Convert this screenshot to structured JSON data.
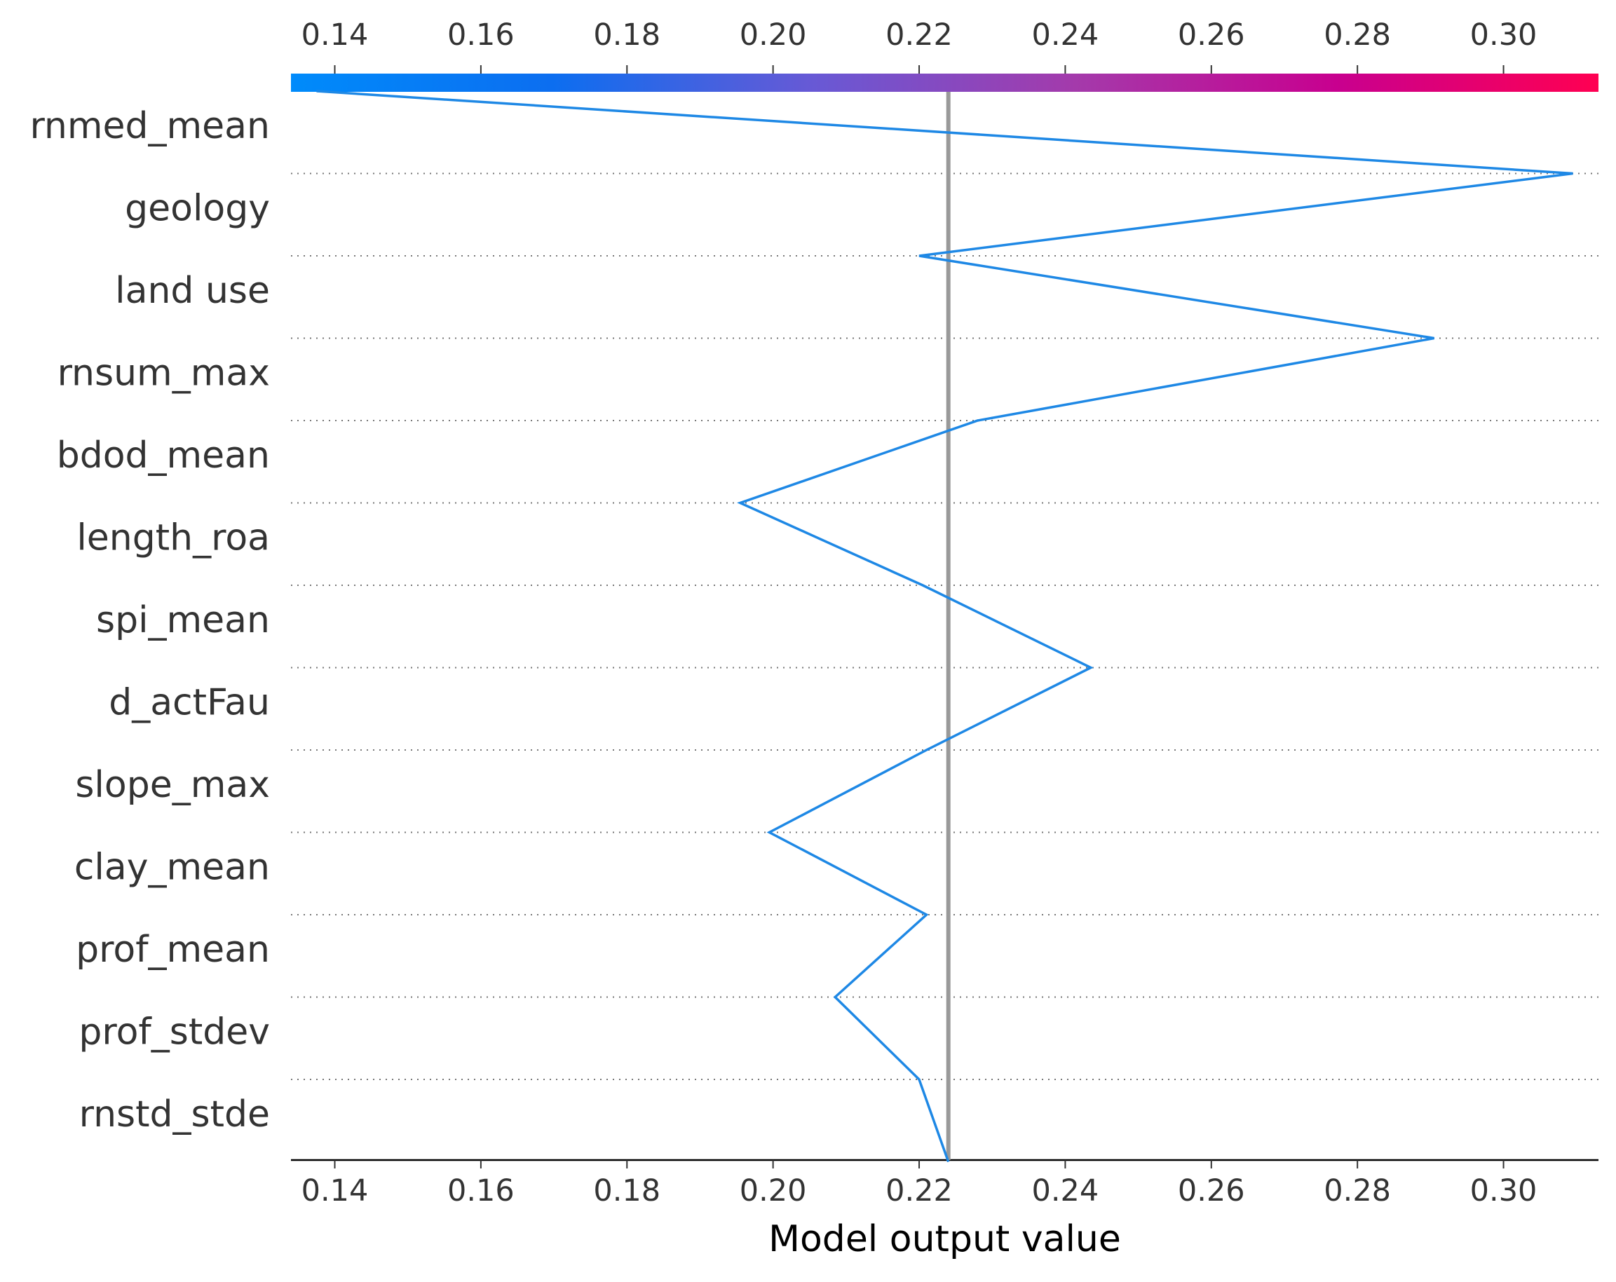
{
  "chart_data": {
    "type": "line",
    "chart_kind": "decision-plot",
    "xlabel": "Model output value",
    "xlim": [
      0.134,
      0.313
    ],
    "x_ticks": [
      "0.14",
      "0.16",
      "0.18",
      "0.20",
      "0.22",
      "0.24",
      "0.26",
      "0.28",
      "0.30"
    ],
    "x_tick_values": [
      0.14,
      0.16,
      0.18,
      0.2,
      0.22,
      0.24,
      0.26,
      0.28,
      0.3
    ],
    "base_value": 0.224,
    "features": [
      "rnmed_mean",
      "geology",
      "land use",
      "rnsum_max",
      "bdod_mean",
      "length_roa",
      "spi_mean",
      "d_actFau",
      "slope_max",
      "clay_mean",
      "prof_mean",
      "prof_stdev",
      "rnstd_stde"
    ],
    "path": {
      "x": [
        0.224,
        0.22,
        0.2085,
        0.221,
        0.1995,
        0.221,
        0.2435,
        0.2205,
        0.1955,
        0.228,
        0.2905,
        0.22,
        0.3095,
        0.1375
      ],
      "note_order": "from bottom (base value) up to top (final output)"
    },
    "line_color": "#1e88e5",
    "base_line_color": "#999999",
    "colorbar": {
      "colors": [
        "#008bfb",
        "#0c6ef0",
        "#6859d5",
        "#a43aab",
        "#c8008f",
        "#ff0052"
      ],
      "range": [
        0.134,
        0.313
      ]
    },
    "grid": "dotted-per-feature",
    "legend": "none"
  }
}
